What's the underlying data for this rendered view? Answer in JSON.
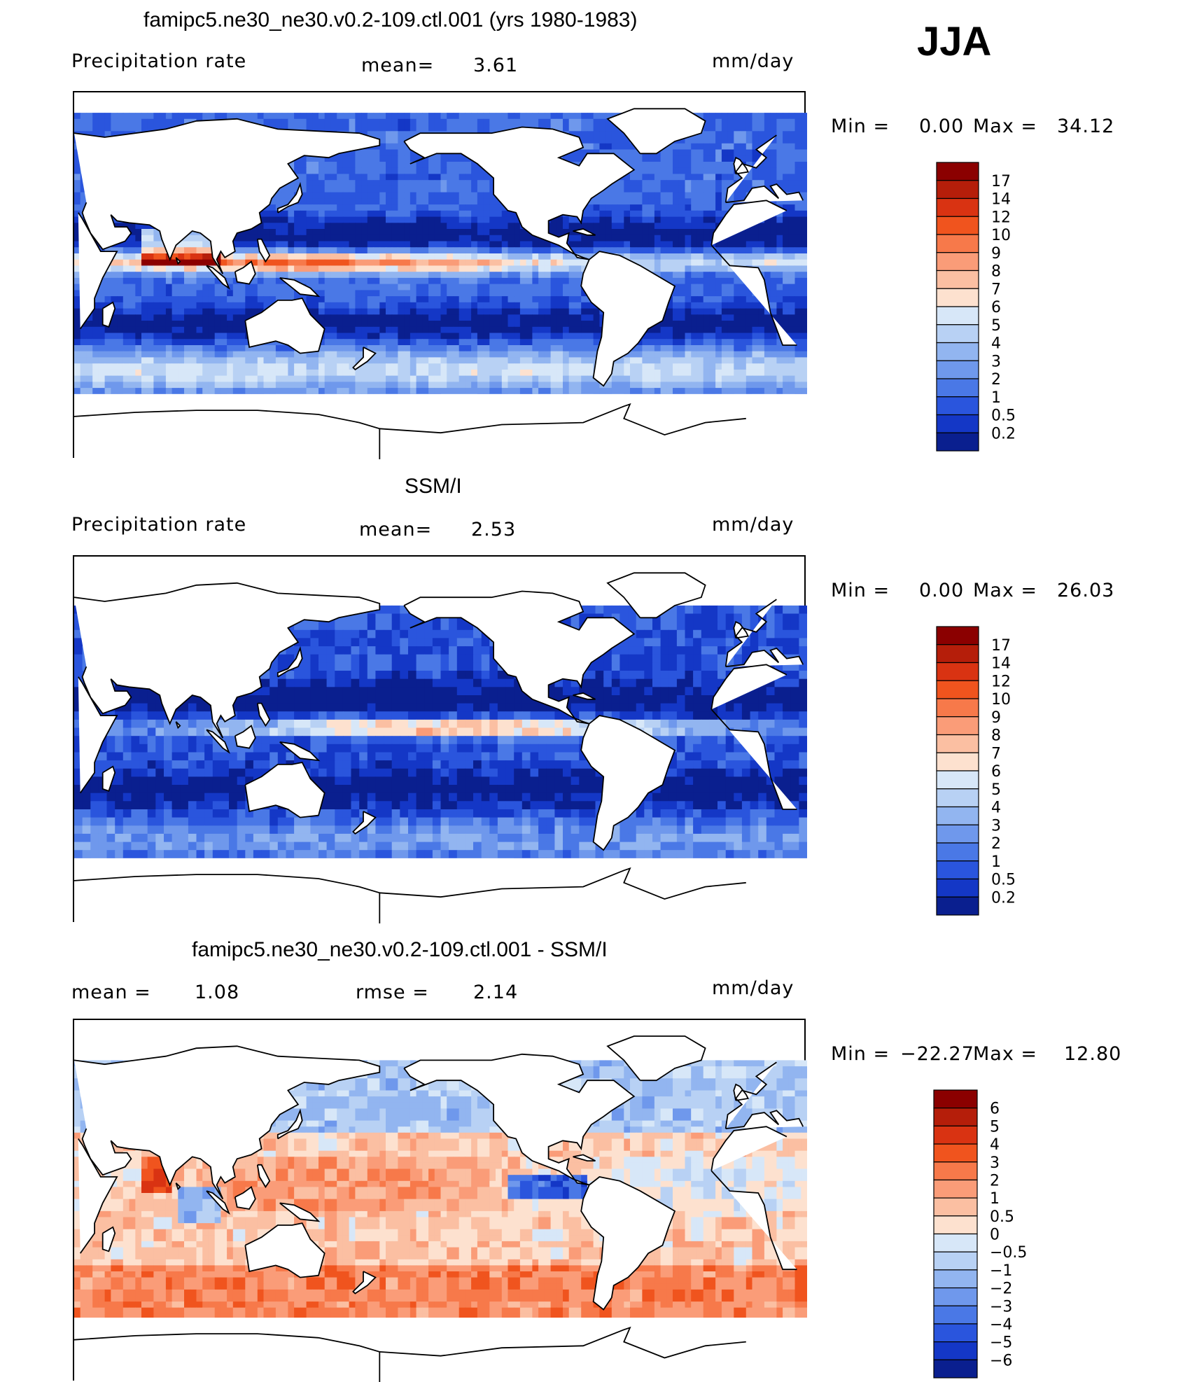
{
  "season": "JJA",
  "panels": [
    {
      "id": "model",
      "title": "famipc5.ne30_ne30.v0.2-109.ctl.001 (yrs 1980-1983)",
      "left_label": "Precipitation rate",
      "stat_label": "mean=",
      "stat_value": "3.61",
      "units": "mm/day",
      "minmax": {
        "min_label": "Min =",
        "min": "0.00",
        "max_label": "Max =",
        "max": "34.12"
      }
    },
    {
      "id": "obs",
      "title": "SSM/I",
      "left_label": "Precipitation rate",
      "stat_label": "mean=",
      "stat_value": "2.53",
      "units": "mm/day",
      "minmax": {
        "min_label": "Min =",
        "min": "0.00",
        "max_label": "Max =",
        "max": "26.03"
      }
    },
    {
      "id": "diff",
      "title": "famipc5.ne30_ne30.v0.2-109.ctl.001 - SSM/I",
      "left_label": "mean =",
      "left_value": "1.08",
      "stat_label": "rmse =",
      "stat_value": "2.14",
      "units": "mm/day",
      "minmax": {
        "min_label": "Min =",
        "min": "−22.27",
        "max_label": "Max =",
        "max": "12.80"
      }
    }
  ],
  "chart_data": [
    {
      "type": "heatmap",
      "title": "famipc5.ne30_ne30.v0.2-109.ctl.001 (yrs 1980-1983)",
      "variable": "Precipitation rate",
      "units": "mm/day",
      "mean": 3.61,
      "min": 0.0,
      "max": 34.12,
      "colorbar_levels": [
        "17",
        "14",
        "12",
        "10",
        "9",
        "8",
        "7",
        "6",
        "5",
        "4",
        "3",
        "2",
        "1",
        "0.5",
        "0.2"
      ],
      "colorbar_colors": [
        "#8b0000",
        "#b51e0a",
        "#d93312",
        "#f0541e",
        "#f7794a",
        "#fa9c78",
        "#fbbfa2",
        "#fde1cf",
        "#d7e7f8",
        "#b8d1f4",
        "#92b5f0",
        "#6f98ec",
        "#4a78e6",
        "#2a55dd",
        "#1437c6",
        "#0a1f8f"
      ]
    },
    {
      "type": "heatmap",
      "title": "SSM/I",
      "variable": "Precipitation rate",
      "units": "mm/day",
      "mean": 2.53,
      "min": 0.0,
      "max": 26.03,
      "colorbar_levels": [
        "17",
        "14",
        "12",
        "10",
        "9",
        "8",
        "7",
        "6",
        "5",
        "4",
        "3",
        "2",
        "1",
        "0.5",
        "0.2"
      ],
      "colorbar_colors": [
        "#8b0000",
        "#b51e0a",
        "#d93312",
        "#f0541e",
        "#f7794a",
        "#fa9c78",
        "#fbbfa2",
        "#fde1cf",
        "#d7e7f8",
        "#b8d1f4",
        "#92b5f0",
        "#6f98ec",
        "#4a78e6",
        "#2a55dd",
        "#1437c6",
        "#0a1f8f"
      ]
    },
    {
      "type": "heatmap",
      "title": "famipc5.ne30_ne30.v0.2-109.ctl.001 - SSM/I",
      "units": "mm/day",
      "mean": 1.08,
      "rmse": 2.14,
      "min": -22.27,
      "max": 12.8,
      "colorbar_levels": [
        "6",
        "5",
        "4",
        "3",
        "2",
        "1",
        "0.5",
        "0",
        "−0.5",
        "−1",
        "−2",
        "−3",
        "−4",
        "−5",
        "−6"
      ],
      "colorbar_colors": [
        "#8b0000",
        "#b51e0a",
        "#d93312",
        "#f0541e",
        "#f7794a",
        "#fa9c78",
        "#fbbfa2",
        "#fde1cf",
        "#d7e7f8",
        "#b8d1f4",
        "#92b5f0",
        "#6f98ec",
        "#4a78e6",
        "#2a55dd",
        "#1437c6",
        "#0a1f8f"
      ]
    }
  ]
}
